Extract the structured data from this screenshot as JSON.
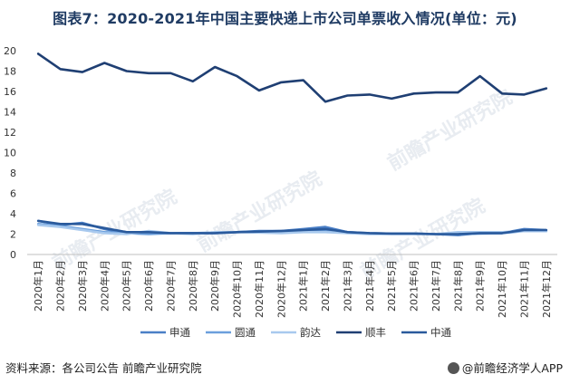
{
  "header": {
    "title": "图表7：2020-2021年中国主要快递上市公司单票收入情况(单位：元)"
  },
  "footer": {
    "source": "资料来源：各公司公告 前瞻产业研究院",
    "brand": "@前瞻经济学人APP"
  },
  "watermark": {
    "text": "前瞻产业研究院"
  },
  "colors": {
    "申通": "#4a7fc6",
    "圆通": "#6b9fdc",
    "韵达": "#a8c9ee",
    "顺丰": "#1f3f73",
    "中通": "#2a5a9c"
  },
  "chart_data": {
    "type": "line",
    "title": "",
    "xlabel": "",
    "ylabel": "",
    "ylim": [
      0,
      20
    ],
    "yticks": [
      0,
      2,
      4,
      6,
      8,
      10,
      12,
      14,
      16,
      18,
      20
    ],
    "categories": [
      "2020年1月",
      "2020年2月",
      "2020年3月",
      "2020年4月",
      "2020年5月",
      "2020年6月",
      "2020年7月",
      "2020年8月",
      "2020年9月",
      "2020年10月",
      "2020年11月",
      "2020年12月",
      "2021年1月",
      "2021年2月",
      "2021年3月",
      "2021年4月",
      "2021年5月",
      "2021年6月",
      "2021年7月",
      "2021年8月",
      "2021年9月",
      "2021年10月",
      "2021年11月",
      "2021年12月"
    ],
    "series": [
      {
        "name": "申通",
        "values": [
          3.3,
          2.9,
          3.1,
          2.5,
          2.1,
          2.1,
          2.1,
          2.1,
          2.1,
          2.2,
          2.3,
          2.3,
          2.5,
          2.7,
          2.2,
          2.1,
          2.05,
          2.05,
          2.0,
          1.9,
          2.1,
          2.1,
          2.5,
          2.4
        ]
      },
      {
        "name": "圆通",
        "values": [
          3.0,
          2.8,
          2.5,
          2.2,
          2.1,
          2.0,
          2.1,
          2.1,
          2.15,
          2.2,
          2.25,
          2.25,
          2.3,
          2.4,
          2.2,
          2.05,
          2.05,
          2.05,
          2.0,
          2.0,
          2.05,
          2.1,
          2.3,
          2.3
        ]
      },
      {
        "name": "韵达",
        "values": [
          2.9,
          2.7,
          2.4,
          2.1,
          2.0,
          2.3,
          2.1,
          2.0,
          2.2,
          2.2,
          2.15,
          2.1,
          2.2,
          2.2,
          2.1,
          2.0,
          2.0,
          2.0,
          2.0,
          2.2,
          2.2,
          2.2,
          2.3,
          2.3
        ]
      },
      {
        "name": "顺丰",
        "values": [
          19.7,
          18.2,
          17.9,
          18.8,
          18.0,
          17.8,
          17.8,
          17.0,
          18.4,
          17.5,
          16.1,
          16.9,
          17.1,
          15.0,
          15.6,
          15.7,
          15.3,
          15.8,
          15.9,
          15.9,
          17.5,
          15.8,
          15.7,
          16.3
        ]
      },
      {
        "name": "中通",
        "values": [
          3.3,
          3.0,
          3.0,
          2.6,
          2.2,
          2.2,
          2.1,
          2.1,
          2.1,
          2.2,
          2.25,
          2.3,
          2.4,
          2.5,
          2.2,
          2.1,
          2.05,
          2.05,
          2.0,
          2.0,
          2.1,
          2.1,
          2.4,
          2.4
        ]
      }
    ],
    "legend_order": [
      "申通",
      "圆通",
      "韵达",
      "顺丰",
      "中通"
    ],
    "legend": "bottom",
    "grid": false
  }
}
